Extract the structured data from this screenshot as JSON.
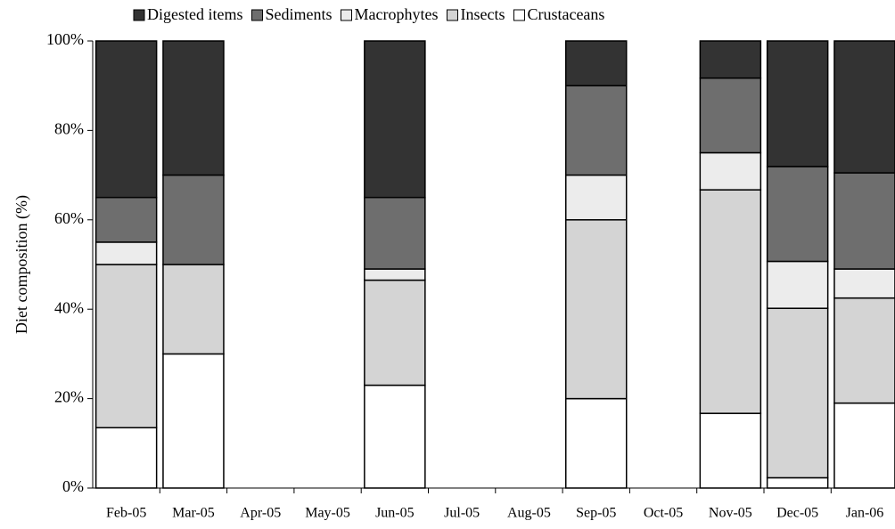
{
  "chart_data": {
    "type": "stacked-bar",
    "y_label": "Diet composition (%)",
    "categories": [
      "Feb-05",
      "Mar-05",
      "Apr-05",
      "May-05",
      "Jun-05",
      "Jul-05",
      "Aug-05",
      "Sep-05",
      "Oct-05",
      "Nov-05",
      "Dec-05",
      "Jan-06"
    ],
    "series": [
      {
        "name": "Digested items",
        "color": "#333333",
        "values": [
          35,
          30,
          null,
          null,
          35,
          null,
          null,
          10,
          null,
          8.3,
          28.1,
          29.5
        ]
      },
      {
        "name": "Sediments",
        "color": "#6e6e6e",
        "values": [
          10,
          20,
          null,
          null,
          16,
          null,
          null,
          20,
          null,
          16.7,
          21.2,
          21.5
        ]
      },
      {
        "name": "Macrophytes",
        "color": "#ececec",
        "values": [
          5,
          0,
          null,
          null,
          2.5,
          null,
          null,
          10,
          null,
          8.3,
          10.5,
          6.5
        ]
      },
      {
        "name": "Insects",
        "color": "#d4d4d4",
        "values": [
          36.5,
          20,
          null,
          null,
          23.5,
          null,
          null,
          40,
          null,
          50,
          37.9,
          23.5
        ]
      },
      {
        "name": "Crustaceans",
        "color": "#ffffff",
        "values": [
          13.5,
          30,
          null,
          null,
          23,
          null,
          null,
          20,
          null,
          16.7,
          2.3,
          19
        ]
      }
    ],
    "ylim": [
      0,
      100
    ],
    "yticks": [
      {
        "value": 0,
        "label": "0%"
      },
      {
        "value": 20,
        "label": "20%"
      },
      {
        "value": 40,
        "label": "40%"
      },
      {
        "value": 60,
        "label": "60%"
      },
      {
        "value": 80,
        "label": "80%"
      },
      {
        "value": 100,
        "label": "100%"
      }
    ],
    "legend": "top"
  }
}
